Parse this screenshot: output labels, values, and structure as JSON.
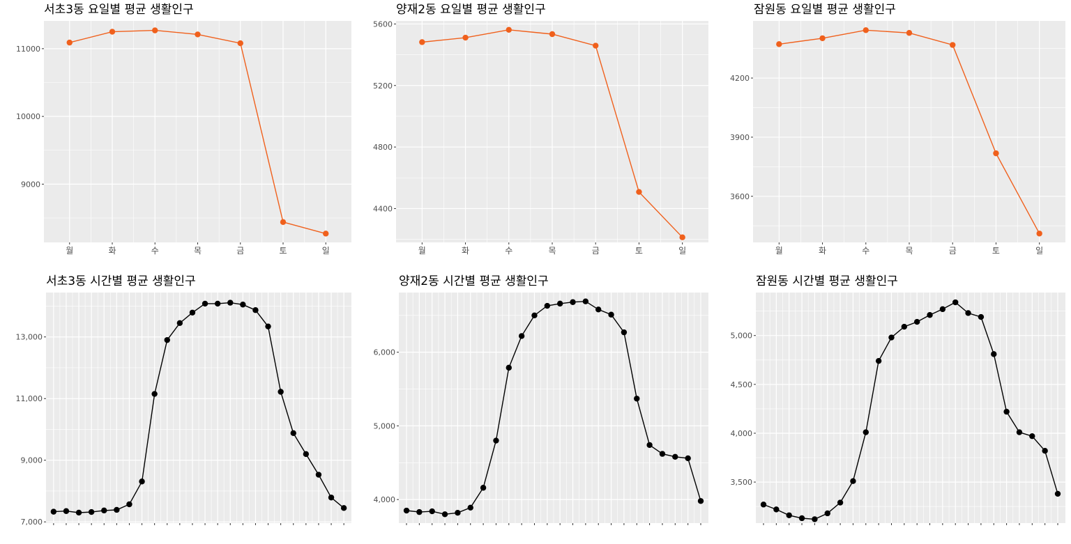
{
  "colors": {
    "panel_bg": "#ebebeb",
    "grid": "#ffffff",
    "text": "#4d4d4d",
    "title": "#000000",
    "weekly_series": "#f0601c",
    "hourly_series": "#000000"
  },
  "chart_data": [
    {
      "type": "line",
      "title": "서초3동 요일별 평균 생활인구",
      "categories": [
        "월",
        "화",
        "수",
        "목",
        "금",
        "토",
        "일"
      ],
      "values": [
        11090,
        11250,
        11270,
        11210,
        11080,
        8440,
        8270
      ],
      "ylim": [
        8140,
        11410
      ],
      "yticks": [
        9000,
        10000,
        11000
      ],
      "ytick_labels": [
        "9000",
        "10000",
        "11000"
      ],
      "grid": true,
      "legend": "none"
    },
    {
      "type": "line",
      "title": "양재2동 요일별 평균 생활인구",
      "categories": [
        "월",
        "화",
        "수",
        "목",
        "금",
        "토",
        "일"
      ],
      "values": [
        5482,
        5511,
        5562,
        5534,
        5459,
        4508,
        4213
      ],
      "ylim": [
        4180,
        5620
      ],
      "yticks": [
        4400,
        4800,
        5200,
        5600
      ],
      "ytick_labels": [
        "4400",
        "4800",
        "5200",
        "5600"
      ],
      "grid": true,
      "legend": "none"
    },
    {
      "type": "line",
      "title": "잠원동 요일별 평균 생활인구",
      "categories": [
        "월",
        "화",
        "수",
        "목",
        "금",
        "토",
        "일"
      ],
      "values": [
        4372,
        4402,
        4443,
        4429,
        4368,
        3818,
        3411
      ],
      "ylim": [
        3366,
        4490
      ],
      "yticks": [
        3600,
        3900,
        4200
      ],
      "ytick_labels": [
        "3600",
        "3900",
        "4200"
      ],
      "grid": true,
      "legend": "none"
    },
    {
      "type": "line",
      "title": "서초3동 시간별 평균 생활인구",
      "x": [
        0,
        1,
        2,
        3,
        4,
        5,
        6,
        7,
        8,
        9,
        10,
        11,
        12,
        13,
        14,
        15,
        16,
        17,
        18,
        19,
        20,
        21,
        22,
        23
      ],
      "values": [
        7330,
        7350,
        7300,
        7320,
        7370,
        7390,
        7570,
        8310,
        11150,
        12900,
        13450,
        13790,
        14080,
        14080,
        14110,
        14050,
        13870,
        13340,
        11220,
        9880,
        9200,
        8530,
        7790,
        7450
      ],
      "ylim": [
        6960,
        14440
      ],
      "yticks": [
        7000,
        9000,
        11000,
        13000
      ],
      "ytick_labels": [
        "7,000",
        "9,000",
        "11,000",
        "13,000"
      ],
      "grid": true,
      "legend": "none"
    },
    {
      "type": "line",
      "title": "양재2동 시간별 평균 생활인구",
      "x": [
        0,
        1,
        2,
        3,
        4,
        5,
        6,
        7,
        8,
        9,
        10,
        11,
        12,
        13,
        14,
        15,
        16,
        17,
        18,
        19,
        20,
        21,
        22,
        23
      ],
      "values": [
        3850,
        3830,
        3840,
        3800,
        3820,
        3890,
        4160,
        4800,
        5790,
        6220,
        6500,
        6630,
        6660,
        6680,
        6690,
        6580,
        6510,
        6270,
        5370,
        4740,
        4620,
        4580,
        4560,
        3980
      ],
      "ylim": [
        3680,
        6810
      ],
      "yticks": [
        4000,
        5000,
        6000
      ],
      "ytick_labels": [
        "4,000",
        "5,000",
        "6,000"
      ],
      "grid": true,
      "legend": "none"
    },
    {
      "type": "line",
      "title": "잠원동 시간별 평균 생활인구",
      "x": [
        0,
        1,
        2,
        3,
        4,
        5,
        6,
        7,
        8,
        9,
        10,
        11,
        12,
        13,
        14,
        15,
        16,
        17,
        18,
        19,
        20,
        21,
        22,
        23
      ],
      "values": [
        3270,
        3220,
        3160,
        3130,
        3120,
        3180,
        3290,
        3510,
        4010,
        4740,
        4980,
        5090,
        5140,
        5210,
        5270,
        5340,
        5230,
        5190,
        4810,
        4220,
        4010,
        3970,
        3820,
        3380
      ],
      "ylim": [
        3080,
        5440
      ],
      "yticks": [
        3500,
        4000,
        4500,
        5000
      ],
      "ytick_labels": [
        "3,500",
        "4,000",
        "4,500",
        "5,000"
      ],
      "grid": true,
      "legend": "none"
    }
  ]
}
